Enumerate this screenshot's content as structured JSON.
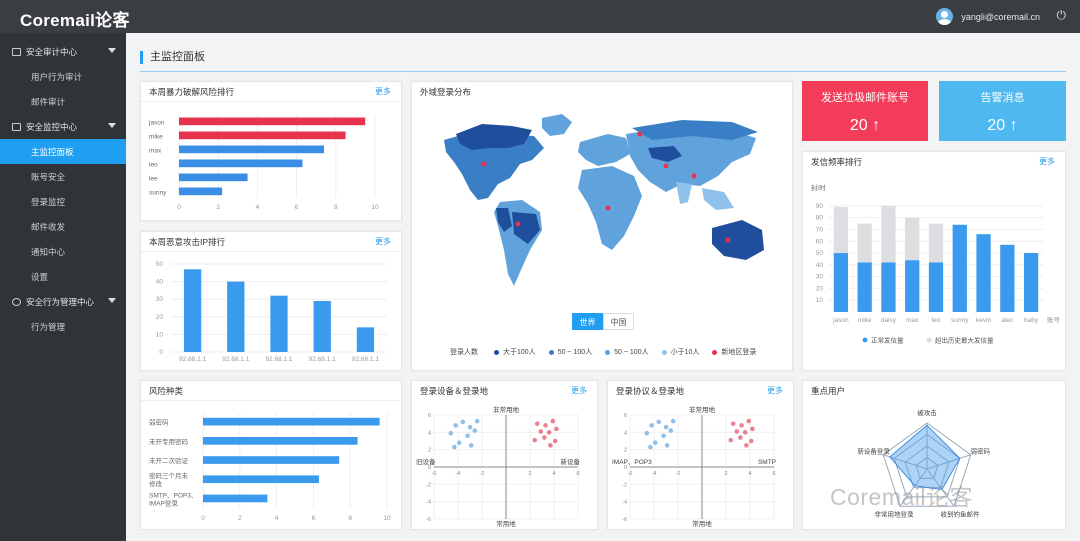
{
  "topbar": {
    "logo": "Coremail论客",
    "user_email": "yangli@coremail.cn",
    "power_glyph": "⏻"
  },
  "sidebar": {
    "groups": [
      {
        "label": "安全审计中心",
        "items": [
          "用户行为审计",
          "邮件审计"
        ]
      },
      {
        "label": "安全监控中心",
        "items": [
          "主监控面板",
          "账号安全",
          "登录监控",
          "邮件收发",
          "通知中心",
          "设置"
        ]
      },
      {
        "label": "安全行为管理中心",
        "items": [
          "行为管理"
        ]
      }
    ],
    "active_item": "主监控面板"
  },
  "page": {
    "title": "主监控面板"
  },
  "more_label": "更多",
  "brute": {
    "title": "本周暴力破解风险排行",
    "chart_data": {
      "type": "bar",
      "orientation": "horizontal",
      "categories": [
        "jason",
        "mike",
        "max",
        "leo",
        "lee",
        "sunny"
      ],
      "values": [
        9.5,
        8.5,
        7.4,
        6.3,
        3.5,
        2.2
      ],
      "colors": [
        "#e8334f",
        "#e8334f",
        "#3a8ee6",
        "#3a8ee6",
        "#3a8ee6",
        "#3a8ee6"
      ],
      "xticks": [
        0,
        2,
        4,
        6,
        8,
        10
      ],
      "xlim": [
        0,
        10
      ]
    }
  },
  "malicious_ip": {
    "title": "本周恶意攻击IP排行",
    "chart_data": {
      "type": "bar",
      "categories": [
        "92.68.1.1",
        "92.68.1.1",
        "92.68.1.1",
        "92.68.1.1",
        "92.68.1.1"
      ],
      "values": [
        47,
        40,
        32,
        29,
        14
      ],
      "yticks": [
        0,
        10,
        20,
        30,
        40,
        50
      ],
      "ylim": [
        0,
        50
      ]
    }
  },
  "map": {
    "title": "外域登录分布",
    "tabs": [
      "世界",
      "中国"
    ],
    "active_tab": "世界",
    "legend_title": "登录人数",
    "legend": [
      {
        "label": "大于100人",
        "color": "#1f4e9c"
      },
      {
        "label": "50 ~ 100人",
        "color": "#3a7fc6"
      },
      {
        "label": "50 ~ 100人",
        "color": "#5fa2dc"
      },
      {
        "label": "小于10人",
        "color": "#8fc1ea"
      },
      {
        "label": "新地区登录",
        "color": "#e8334f"
      }
    ]
  },
  "spam": {
    "title": "发送垃圾邮件账号",
    "value": "20",
    "arrow": "↑",
    "color": "#f23c5a"
  },
  "alert": {
    "title": "告警消息",
    "value": "20",
    "arrow": "↑",
    "color": "#4fb8f0"
  },
  "frequency": {
    "title": "发信频率排行",
    "chart_data": {
      "type": "bar",
      "stacked": true,
      "ylabel": "封/时",
      "xlabel": "账号",
      "categories": [
        "jason",
        "mike",
        "daisy",
        "max",
        "leo",
        "sunny",
        "kevin",
        "alec",
        "baby"
      ],
      "series": [
        {
          "name": "正常发信量",
          "values": [
            50,
            42,
            42,
            44,
            42,
            74,
            66,
            57,
            50
          ],
          "color": "#3a9aee"
        },
        {
          "name": "超出历史最大发信量",
          "values": [
            39,
            33,
            48,
            36,
            33,
            0,
            0,
            0,
            0
          ],
          "color": "#dddee2"
        }
      ],
      "yticks": [
        10,
        20,
        30,
        40,
        50,
        60,
        70,
        80,
        90
      ],
      "ylim": [
        0,
        95
      ]
    }
  },
  "risk_types": {
    "title": "风险种类",
    "chart_data": {
      "type": "bar",
      "orientation": "horizontal",
      "categories": [
        "弱密码",
        "未开专用密码",
        "未开二次验证",
        "密码三个月未修改",
        "SMTP、POP3、IMAP登录"
      ],
      "category_lines": [
        [
          "弱密码"
        ],
        [
          "未开专用密码"
        ],
        [
          "未开二次验证"
        ],
        [
          "密码三个月未",
          "修改"
        ],
        [
          "SMTP、POP3、",
          "IMAP登录"
        ]
      ],
      "values": [
        9.6,
        8.4,
        7.4,
        6.3,
        3.5
      ],
      "xticks": [
        0,
        2,
        4,
        6,
        8,
        10
      ],
      "xlim": [
        0,
        10
      ]
    }
  },
  "device_scatter": {
    "title": "登录设备＆登录地",
    "labels": {
      "top": "非常用地",
      "bottom": "常用地",
      "left": "旧设备",
      "right": "新设备"
    },
    "chart_data": {
      "type": "scatter",
      "xticks": [
        -6,
        -4,
        -2,
        0,
        2,
        4,
        6
      ],
      "yticks": [
        -6,
        -4,
        -2,
        0,
        2,
        4,
        6
      ],
      "series": [
        {
          "name": "blue",
          "color": "#7bb5e8",
          "points": [
            [
              -4.2,
              4.8
            ],
            [
              -3.6,
              5.2
            ],
            [
              -3.0,
              4.6
            ],
            [
              -2.4,
              5.3
            ],
            [
              -4.6,
              3.9
            ],
            [
              -3.2,
              3.6
            ],
            [
              -2.6,
              4.2
            ],
            [
              -3.9,
              2.8
            ],
            [
              -2.9,
              2.5
            ],
            [
              -4.3,
              2.3
            ]
          ]
        },
        {
          "name": "red",
          "color": "#e86a7a",
          "points": [
            [
              2.6,
              5.0
            ],
            [
              3.3,
              4.8
            ],
            [
              3.9,
              5.3
            ],
            [
              2.9,
              4.1
            ],
            [
              3.6,
              4.0
            ],
            [
              4.2,
              4.4
            ],
            [
              2.4,
              3.1
            ],
            [
              3.2,
              3.4
            ],
            [
              4.1,
              3.0
            ],
            [
              3.7,
              2.5
            ]
          ]
        }
      ]
    }
  },
  "protocol_scatter": {
    "title": "登录协议＆登录地",
    "labels": {
      "top": "非常用地",
      "bottom": "常用地",
      "left": "IMAP、POP3",
      "right": "SMTP"
    },
    "chart_data": {
      "type": "scatter",
      "xticks": [
        -6,
        -4,
        -2,
        0,
        2,
        4,
        6
      ],
      "yticks": [
        -6,
        -4,
        -2,
        0,
        2,
        4,
        6
      ],
      "series": [
        {
          "name": "blue",
          "color": "#7bb5e8",
          "points": [
            [
              -4.2,
              4.8
            ],
            [
              -3.6,
              5.2
            ],
            [
              -3.0,
              4.6
            ],
            [
              -2.4,
              5.3
            ],
            [
              -4.6,
              3.9
            ],
            [
              -3.2,
              3.6
            ],
            [
              -2.6,
              4.2
            ],
            [
              -3.9,
              2.8
            ],
            [
              -2.9,
              2.5
            ],
            [
              -4.3,
              2.3
            ]
          ]
        },
        {
          "name": "red",
          "color": "#e86a7a",
          "points": [
            [
              2.6,
              5.0
            ],
            [
              3.3,
              4.8
            ],
            [
              3.9,
              5.3
            ],
            [
              2.9,
              4.1
            ],
            [
              3.6,
              4.0
            ],
            [
              4.2,
              4.4
            ],
            [
              2.4,
              3.1
            ],
            [
              3.2,
              3.4
            ],
            [
              4.1,
              3.0
            ],
            [
              3.7,
              2.5
            ]
          ]
        }
      ]
    }
  },
  "key_users": {
    "title": "重点用户",
    "chart_data": {
      "type": "radar",
      "axes": [
        "被攻击",
        "弱密码",
        "收到钓鱼邮件",
        "非常用地登录",
        "新设备登录"
      ],
      "values": [
        0.95,
        0.75,
        0.55,
        0.45,
        0.85
      ],
      "max": 1
    }
  },
  "watermark": "Coremail论客"
}
